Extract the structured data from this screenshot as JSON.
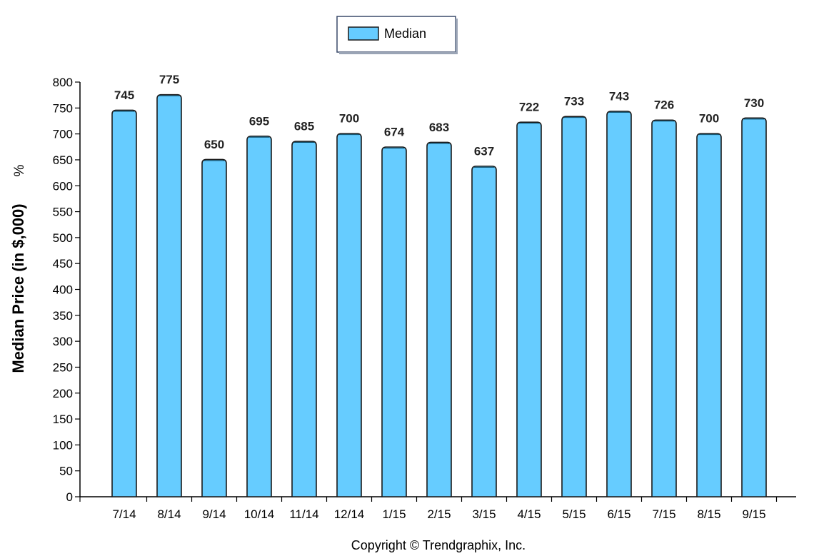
{
  "chart_data": {
    "type": "bar",
    "categories": [
      "7/14",
      "8/14",
      "9/14",
      "10/14",
      "11/14",
      "12/14",
      "1/15",
      "2/15",
      "3/15",
      "4/15",
      "5/15",
      "6/15",
      "7/15",
      "8/15",
      "9/15"
    ],
    "series": [
      {
        "name": "Median",
        "values": [
          745,
          775,
          650,
          695,
          685,
          700,
          674,
          683,
          637,
          722,
          733,
          743,
          726,
          700,
          730
        ],
        "color": "#66ccff"
      }
    ],
    "ylabel": "Median Price (in $,000)",
    "ylabel_unit": "%",
    "ylim": [
      0,
      800
    ],
    "yticks": [
      0,
      50,
      100,
      150,
      200,
      250,
      300,
      350,
      400,
      450,
      500,
      550,
      600,
      650,
      700,
      750,
      800
    ],
    "grid": false,
    "legend_position": "top-center",
    "data_labels": true
  },
  "footer": {
    "copyright": "Copyright © Trendgraphix, Inc."
  },
  "colors": {
    "bar_fill": "#66ccff",
    "bar_stroke": "#1a1a1a",
    "axis": "#000000"
  }
}
